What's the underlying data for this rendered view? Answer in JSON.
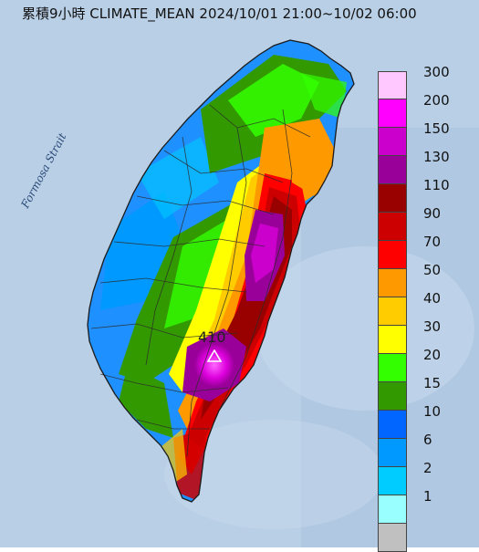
{
  "title": "累積9小時 CLIMATE_MEAN 2024/10/01 21:00~10/02 06:00",
  "strait_label": "Formosa Strait",
  "max_value_label": "410",
  "legend": [
    {
      "label": "300",
      "color": "#ffc8ff"
    },
    {
      "label": "200",
      "color": "#ff00ff"
    },
    {
      "label": "150",
      "color": "#cc00cc"
    },
    {
      "label": "130",
      "color": "#990099"
    },
    {
      "label": "110",
      "color": "#990000"
    },
    {
      "label": "90",
      "color": "#cc0000"
    },
    {
      "label": "70",
      "color": "#ff0000"
    },
    {
      "label": "50",
      "color": "#ff9900"
    },
    {
      "label": "40",
      "color": "#ffcc00"
    },
    {
      "label": "30",
      "color": "#ffff00"
    },
    {
      "label": "20",
      "color": "#33ff00"
    },
    {
      "label": "15",
      "color": "#339900"
    },
    {
      "label": "10",
      "color": "#0066ff"
    },
    {
      "label": "6",
      "color": "#0099ff"
    },
    {
      "label": "2",
      "color": "#00ccff"
    },
    {
      "label": "1",
      "color": "#99ffff"
    },
    {
      "label": "",
      "color": "#c0c0c0"
    }
  ],
  "colors": {
    "sea": "#b9cfe6",
    "sea_dark": "#a9c2de",
    "border": "#2b2b2b"
  }
}
